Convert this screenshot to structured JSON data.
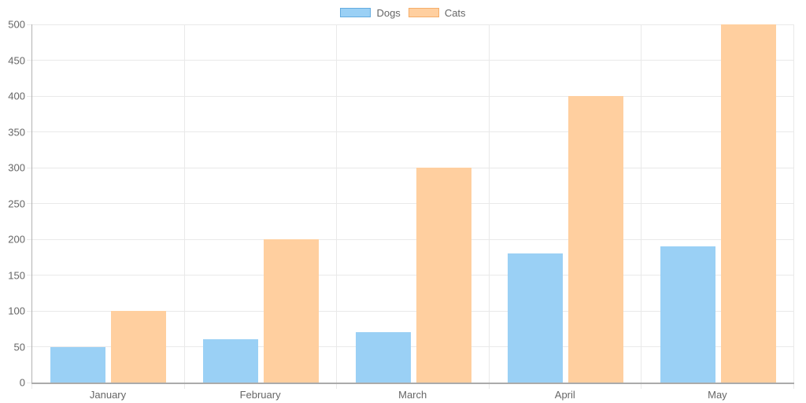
{
  "chart_data": {
    "type": "bar",
    "title": "",
    "xlabel": "",
    "ylabel": "",
    "categories": [
      "January",
      "February",
      "March",
      "April",
      "May"
    ],
    "series": [
      {
        "name": "Dogs",
        "values": [
          50,
          60,
          70,
          180,
          190
        ],
        "fill_color": "#9AD0F5",
        "border_color": "#64ACE0"
      },
      {
        "name": "Cats",
        "values": [
          100,
          200,
          300,
          400,
          500
        ],
        "fill_color": "#FFCF9F",
        "border_color": "#F5AE6B"
      }
    ],
    "ylim": [
      0,
      500
    ],
    "ytick_step": 50,
    "yticks": [
      0,
      50,
      100,
      150,
      200,
      250,
      300,
      350,
      400,
      450,
      500
    ],
    "grid": true,
    "legend_position": "top-center"
  },
  "colors": {
    "gridline": "#e9e9e9",
    "axis_line": "#ababab",
    "tick_text": "#666666",
    "background": "#ffffff"
  }
}
